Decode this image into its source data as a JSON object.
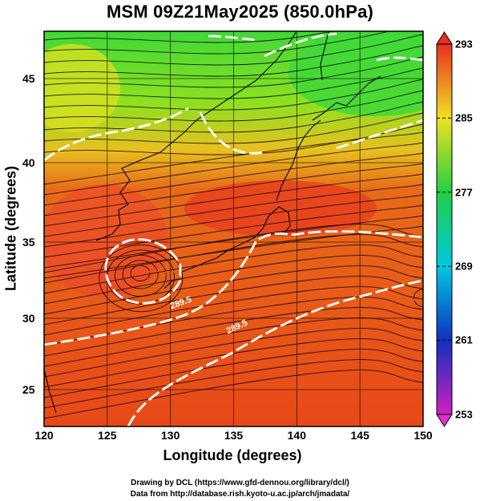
{
  "title": "MSM 09Z21May2025 (850.0hPa)",
  "xlabel": "Longitude (degrees)",
  "ylabel": "Latitude  (degrees)",
  "x_ticks": [
    "120",
    "125",
    "130",
    "135",
    "140",
    "145",
    "150"
  ],
  "y_ticks": [
    "25",
    "30",
    "35",
    "40",
    "45"
  ],
  "colorbar_ticks": [
    "293",
    "285",
    "277",
    "269",
    "261",
    "253"
  ],
  "contour_labels": [
    "289.5",
    "289.5"
  ],
  "credits": {
    "line1": "Drawing by DCL (https://www.gfd-dennou.org/library/dcl/)",
    "line2": "Data from http://database.rish.kyoto-u.ac.jp/arch/jmadata/"
  },
  "chart_data": {
    "type": "heatmap",
    "variable": "temperature (K) with wind streamlines",
    "xlim": [
      120,
      150
    ],
    "ylim": [
      22.4,
      47.6
    ],
    "colorbar_range": [
      253,
      293
    ],
    "colors": {
      "warm": "#e8401a",
      "mid": "#f0c020",
      "cool": "#30d030",
      "contour": "#ffffff",
      "background": "#ffffff"
    }
  }
}
